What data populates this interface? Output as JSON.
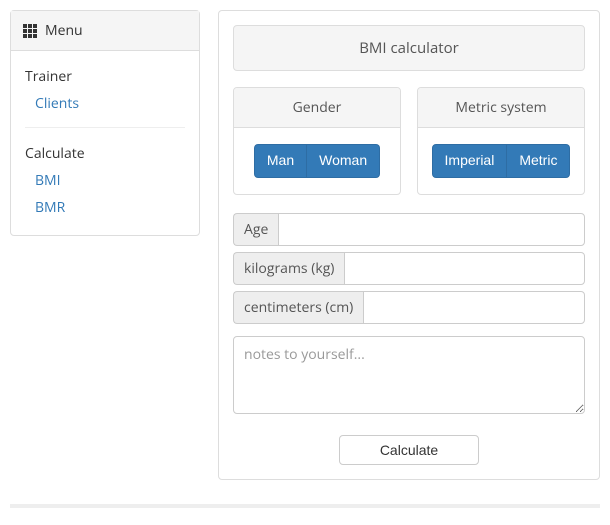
{
  "sidebar": {
    "menu_label": "Menu",
    "sections": [
      {
        "title": "Trainer",
        "items": [
          "Clients"
        ]
      },
      {
        "title": "Calculate",
        "items": [
          "BMI",
          "BMR"
        ]
      }
    ]
  },
  "page": {
    "title": "BMI calculator"
  },
  "gender_panel": {
    "title": "Gender",
    "options": [
      "Man",
      "Woman"
    ]
  },
  "metric_panel": {
    "title": "Metric system",
    "options": [
      "Imperial",
      "Metric"
    ]
  },
  "fields": {
    "age_label": "Age",
    "weight_label": "kilograms (kg)",
    "height_label": "centimeters (cm)",
    "age_value": "",
    "weight_value": "",
    "height_value": ""
  },
  "notes": {
    "placeholder": "notes to yourself...",
    "value": ""
  },
  "actions": {
    "calculate_label": "Calculate"
  },
  "colors": {
    "primary": "#337ab7",
    "link": "#337ab7",
    "border": "#dddddd",
    "panel_bg": "#f5f5f5"
  }
}
